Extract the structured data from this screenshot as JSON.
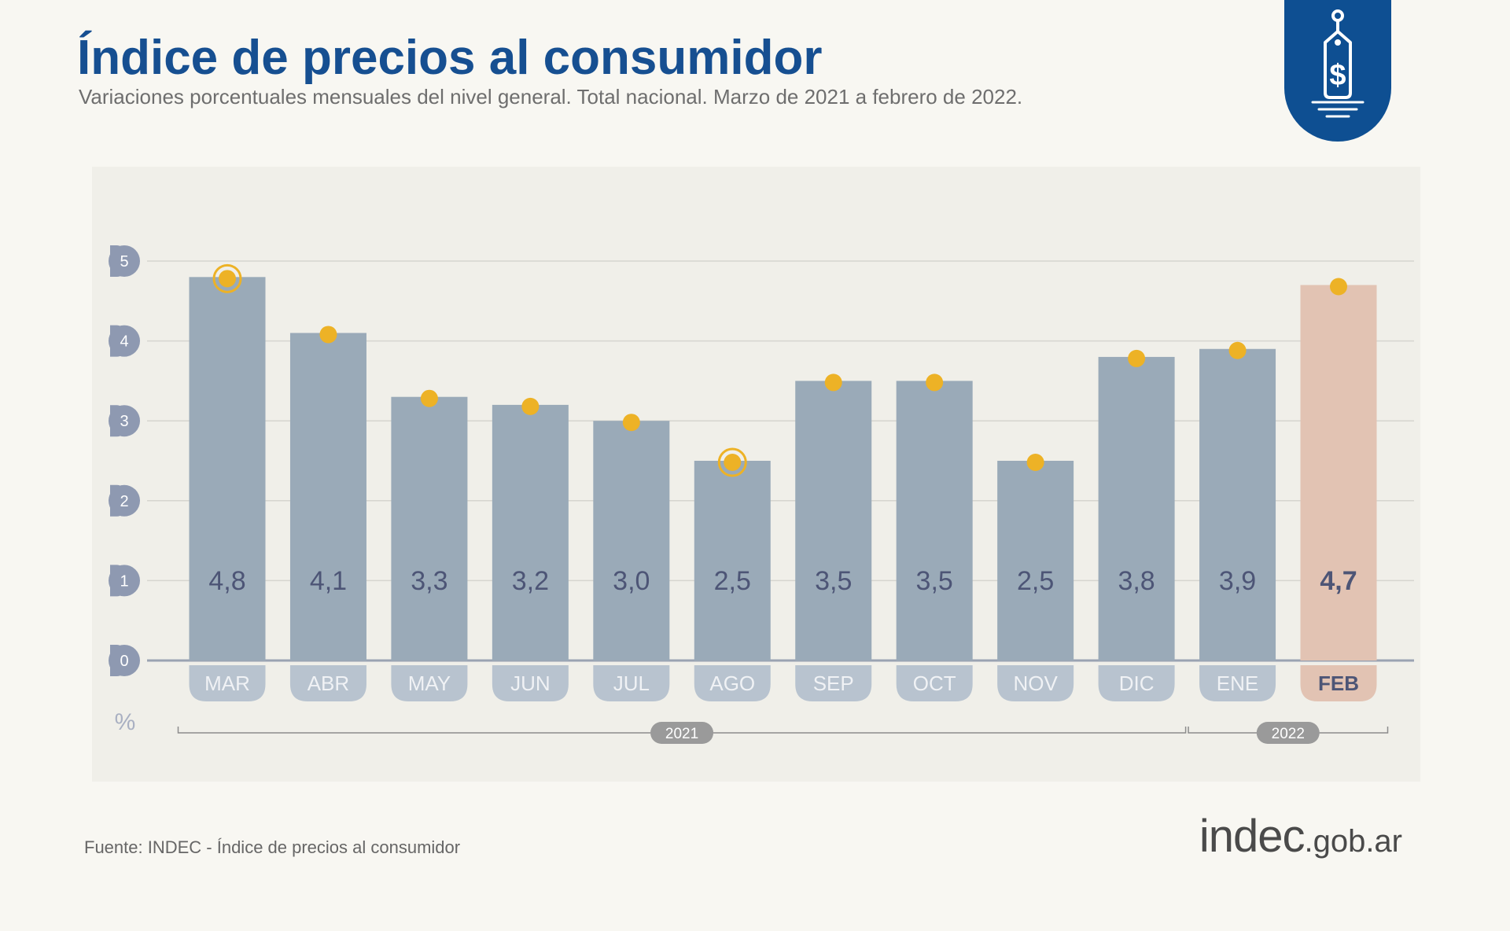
{
  "header": {
    "title": "Índice de precios al consumidor",
    "subtitle": "Variaciones porcentuales mensuales del nivel general. Total nacional. Marzo de 2021 a febrero de 2022."
  },
  "badge": {
    "icon": "price-tag-dollar-icon",
    "color": "#0e4f92"
  },
  "chart_data": {
    "type": "bar",
    "categories": [
      "MAR",
      "ABR",
      "MAY",
      "JUN",
      "JUL",
      "AGO",
      "SEP",
      "OCT",
      "NOV",
      "DIC",
      "ENE",
      "FEB"
    ],
    "values": [
      4.8,
      4.1,
      3.3,
      3.2,
      3.0,
      2.5,
      3.5,
      3.5,
      2.5,
      3.8,
      3.9,
      4.7
    ],
    "value_labels": [
      "4,8",
      "4,1",
      "3,3",
      "3,2",
      "3,0",
      "2,5",
      "3,5",
      "3,5",
      "2,5",
      "3,8",
      "3,9",
      "4,7"
    ],
    "ylabel": "%",
    "ylim": [
      0,
      5
    ],
    "yticks": [
      0,
      1,
      2,
      3,
      4,
      5
    ],
    "grid": true,
    "year_groups": [
      {
        "label": "2021",
        "categories": [
          "MAR",
          "ABR",
          "MAY",
          "JUN",
          "JUL",
          "AGO",
          "SEP",
          "OCT",
          "NOV",
          "DIC"
        ]
      },
      {
        "label": "2022",
        "categories": [
          "ENE",
          "FEB"
        ]
      }
    ],
    "highlighted_category": "FEB",
    "marked_categories": [
      "MAR",
      "AGO"
    ],
    "colors": {
      "bar": "#9aaab8",
      "bar_highlight": "#e2c3b3",
      "dot": "#edb226",
      "value_text": "#4d5576",
      "tick_circle": "#8e99b1",
      "month_text": "#f0f2f5"
    }
  },
  "footer": {
    "source": "Fuente: INDEC - Índice de precios al consumidor",
    "site_brand": "indec",
    "site_domain": ".gob.ar"
  }
}
